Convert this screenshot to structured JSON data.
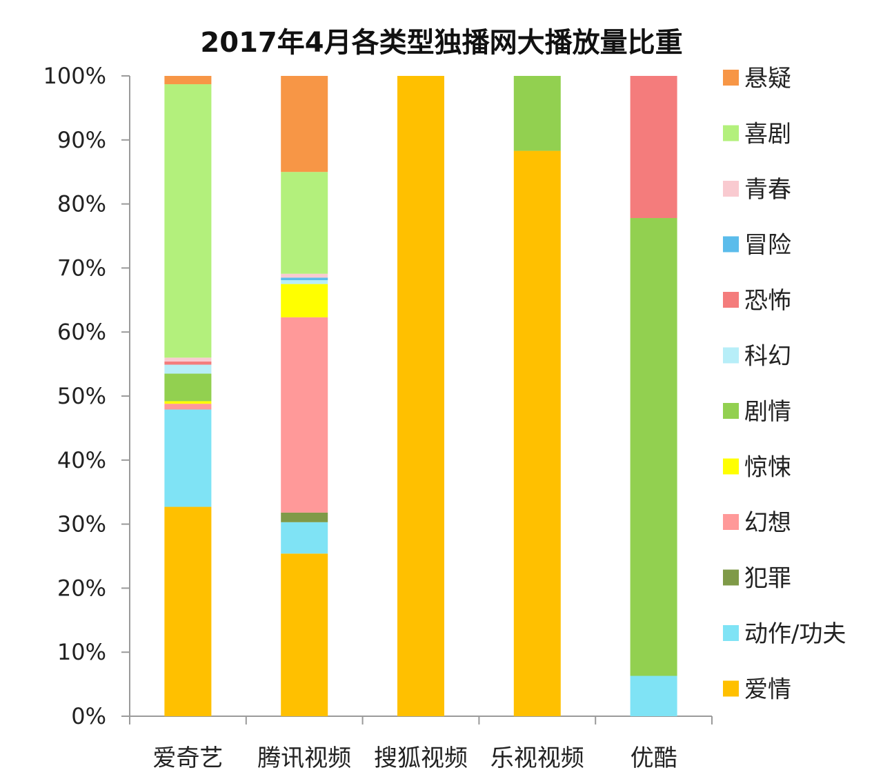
{
  "chart_data": {
    "type": "bar",
    "stacked": true,
    "title": "2017年4月各类型独播网大播放量比重",
    "categories": [
      "爱奇艺",
      "腾讯视频",
      "搜狐视频",
      "乐视视频",
      "优酷"
    ],
    "yticks": [
      "0%",
      "10%",
      "20%",
      "30%",
      "40%",
      "50%",
      "60%",
      "70%",
      "80%",
      "90%",
      "100%"
    ],
    "ylim": [
      0,
      100
    ],
    "grid": false,
    "legend_position": "right",
    "series": [
      {
        "name": "爱情",
        "color": "#FFC000",
        "values": [
          32.7,
          25.4,
          100,
          88.3,
          0
        ]
      },
      {
        "name": "动作/功夫",
        "color": "#7FE3F5",
        "values": [
          15.2,
          4.9,
          0,
          0,
          6.3
        ]
      },
      {
        "name": "犯罪",
        "color": "#7F9A48",
        "values": [
          0,
          1.5,
          0,
          0,
          0
        ]
      },
      {
        "name": "幻想",
        "color": "#FF9999",
        "values": [
          0.9,
          30.5,
          0,
          0,
          0
        ]
      },
      {
        "name": "惊悚",
        "color": "#FFFF00",
        "values": [
          0.4,
          5.2,
          0,
          0,
          0
        ]
      },
      {
        "name": "剧情",
        "color": "#92D050",
        "values": [
          4.3,
          0,
          0,
          11.7,
          71.5
        ]
      },
      {
        "name": "科幻",
        "color": "#B7EEF8",
        "values": [
          1.4,
          0.6,
          0,
          0,
          0
        ]
      },
      {
        "name": "恐怖",
        "color": "#F47C7C",
        "values": [
          0.5,
          0,
          0,
          0,
          22.2
        ]
      },
      {
        "name": "冒险",
        "color": "#5BBCEB",
        "values": [
          0,
          0.4,
          0,
          0,
          0
        ]
      },
      {
        "name": "青春",
        "color": "#F9CAD0",
        "values": [
          0.6,
          0.6,
          0,
          0,
          0
        ]
      },
      {
        "name": "喜剧",
        "color": "#B3F07C",
        "values": [
          42.7,
          15.9,
          0,
          0,
          0
        ]
      },
      {
        "name": "悬疑",
        "color": "#F79646",
        "values": [
          1.3,
          15.0,
          0,
          0,
          0
        ]
      }
    ]
  }
}
